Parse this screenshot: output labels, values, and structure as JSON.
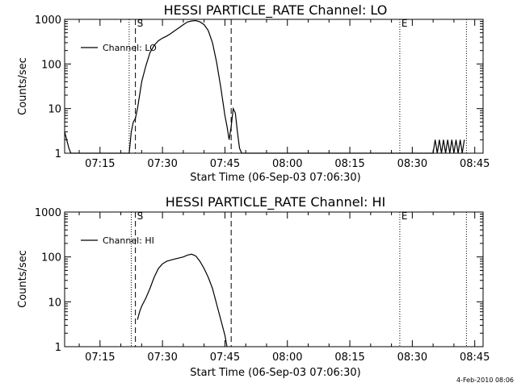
{
  "chart_data": [
    {
      "type": "line",
      "title": "HESSI PARTICLE_RATE Channel: LO",
      "xlabel": "Start Time (06-Sep-03 07:06:30)",
      "ylabel": "Counts/sec",
      "yscale": "log",
      "ylim": [
        1,
        1000
      ],
      "xlim": [
        "07:06:30",
        "08:47:00"
      ],
      "xticks": [
        "07:15",
        "07:30",
        "07:45",
        "08:00",
        "08:15",
        "08:30",
        "08:45"
      ],
      "yticks": [
        "1",
        "10",
        "100",
        "1000"
      ],
      "legend": "upper-left",
      "markers": {
        "start_label": "S",
        "end_label": "E",
        "dotted": [
          "07:22:00",
          "08:27:00",
          "08:43:00"
        ],
        "dashed": [
          "07:23:30",
          "07:46:30"
        ]
      },
      "series": [
        {
          "name": "Channel: LO",
          "x": [
            "07:06:30",
            "07:07:00",
            "07:07:30",
            "07:08:00",
            "07:22:00",
            "07:22:30",
            "07:23:00",
            "07:23:30",
            "07:24:00",
            "07:25:00",
            "07:26:00",
            "07:27:00",
            "07:28:00",
            "07:29:00",
            "07:30:00",
            "07:31:00",
            "07:32:00",
            "07:33:00",
            "07:34:00",
            "07:35:00",
            "07:36:00",
            "07:37:00",
            "07:38:00",
            "07:39:00",
            "07:40:00",
            "07:41:00",
            "07:42:00",
            "07:43:00",
            "07:44:00",
            "07:45:00",
            "07:45:30",
            "07:46:00",
            "07:46:30",
            "07:47:00",
            "07:47:30",
            "07:48:00",
            "07:48:30",
            "07:49:00",
            "08:35:00",
            "08:35:30",
            "08:36:00",
            "08:36:30",
            "08:37:00",
            "08:37:30",
            "08:38:00",
            "08:38:30",
            "08:39:00",
            "08:39:30",
            "08:40:00",
            "08:40:30",
            "08:41:00",
            "08:41:30",
            "08:42:00",
            "08:42:30"
          ],
          "y": [
            3,
            2,
            1.3,
            1,
            1,
            3,
            5,
            6,
            10,
            40,
            90,
            180,
            260,
            330,
            380,
            420,
            480,
            560,
            650,
            760,
            870,
            920,
            940,
            880,
            760,
            560,
            300,
            110,
            30,
            7,
            4,
            2,
            4,
            10,
            8,
            3,
            1.3,
            1,
            1,
            2,
            1,
            2,
            1,
            2,
            1,
            2,
            1,
            2,
            1,
            2,
            1,
            2,
            1,
            2
          ]
        }
      ]
    },
    {
      "type": "line",
      "title": "HESSI PARTICLE_RATE Channel: HI",
      "xlabel": "Start Time (06-Sep-03 07:06:30)",
      "ylabel": "Counts/sec",
      "yscale": "log",
      "ylim": [
        1,
        1000
      ],
      "xlim": [
        "07:06:30",
        "08:47:00"
      ],
      "xticks": [
        "07:15",
        "07:30",
        "07:45",
        "08:00",
        "08:15",
        "08:30",
        "08:45"
      ],
      "yticks": [
        "1",
        "10",
        "100",
        "1000"
      ],
      "legend": "upper-left",
      "markers": {
        "start_label": "S",
        "end_label": "E",
        "dotted": [
          "07:22:30",
          "08:27:00",
          "08:43:00"
        ],
        "dashed": [
          "07:23:30",
          "07:46:30"
        ]
      },
      "series": [
        {
          "name": "Channel: HI",
          "x": [
            "07:24:00",
            "07:24:30",
            "07:25:00",
            "07:26:00",
            "07:27:00",
            "07:28:00",
            "07:29:00",
            "07:30:00",
            "07:31:00",
            "07:32:00",
            "07:33:00",
            "07:34:00",
            "07:35:00",
            "07:36:00",
            "07:37:00",
            "07:38:00",
            "07:39:00",
            "07:40:00",
            "07:41:00",
            "07:42:00",
            "07:43:00",
            "07:44:00",
            "07:45:00",
            "07:45:30"
          ],
          "y": [
            4,
            6,
            8,
            12,
            20,
            35,
            55,
            70,
            80,
            85,
            90,
            95,
            100,
            110,
            115,
            105,
            80,
            55,
            35,
            20,
            9,
            4,
            1.8,
            1
          ]
        }
      ]
    }
  ],
  "footer": {
    "date_stamp": "4-Feb-2010 08:06"
  }
}
